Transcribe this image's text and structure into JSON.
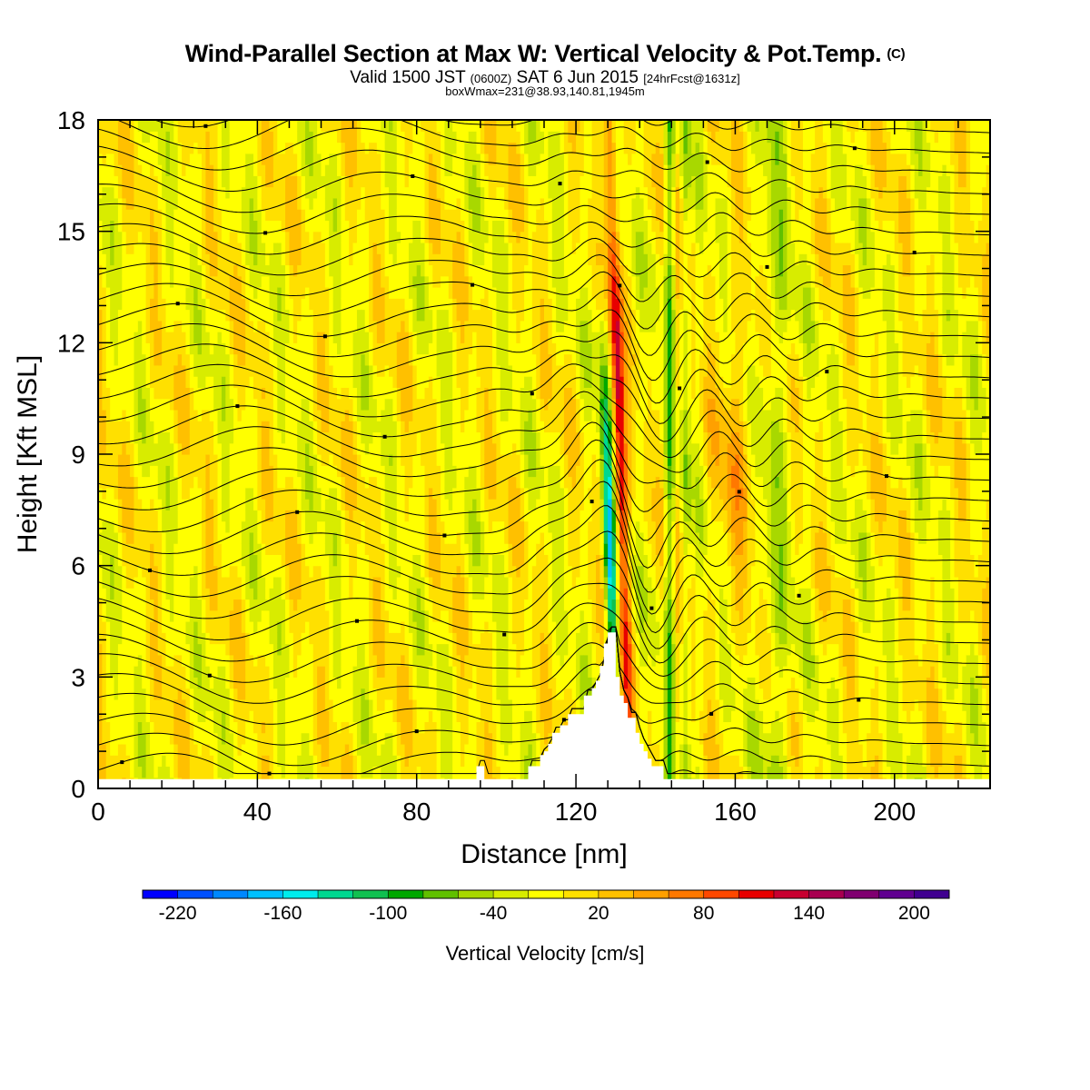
{
  "header": {
    "title": "Wind-Parallel Section at Max W: Vertical Velocity & Pot.Temp.",
    "copyright": "(C)",
    "valid_prefix": "Valid 1500 JST",
    "valid_zulu": "(0600Z)",
    "valid_date": "SAT 6 Jun 2015",
    "forecast": "[24hrFcst@1631z]",
    "box_info": "boxWmax=231@38.93,140.81,1945m"
  },
  "chart_data": {
    "type": "heatmap",
    "xlabel": "Distance [nm]",
    "ylabel": "Height [Kft MSL]",
    "xlim": [
      0,
      224
    ],
    "ylim": [
      0,
      18
    ],
    "x_ticks": [
      "0",
      "40",
      "80",
      "120",
      "160",
      "200"
    ],
    "y_ticks": [
      "0",
      "3",
      "6",
      "9",
      "12",
      "15",
      "18"
    ],
    "x_tick_values": [
      0,
      40,
      80,
      120,
      160,
      200
    ],
    "y_tick_values": [
      0,
      3,
      6,
      9,
      12,
      15,
      18
    ],
    "colorbar": {
      "title": "Vertical Velocity [cm/s]",
      "labels": [
        "-220",
        "-160",
        "-100",
        "-40",
        "20",
        "80",
        "140",
        "200"
      ],
      "label_values": [
        -220,
        -160,
        -100,
        -40,
        20,
        80,
        140,
        200
      ],
      "min": -240,
      "max": 220,
      "step": 20,
      "colors": [
        "#0000ff",
        "#0050ff",
        "#0088ff",
        "#00c0ff",
        "#00ecec",
        "#00d890",
        "#10c050",
        "#00a800",
        "#60c000",
        "#a8d800",
        "#d8ec00",
        "#ffff00",
        "#ffe000",
        "#ffc000",
        "#ffa000",
        "#ff7800",
        "#ff4800",
        "#e80000",
        "#c80030",
        "#a80050",
        "#800070",
        "#600090",
        "#400090"
      ]
    },
    "terrain": [
      [
        0,
        0.25
      ],
      [
        94,
        0.25
      ],
      [
        95,
        0.6
      ],
      [
        96,
        0.6
      ],
      [
        97,
        0.25
      ],
      [
        107,
        0.25
      ],
      [
        108,
        0.6
      ],
      [
        110,
        0.6
      ],
      [
        111,
        0.9
      ],
      [
        112,
        1.0
      ],
      [
        113,
        1.2
      ],
      [
        114,
        1.5
      ],
      [
        116,
        1.7
      ],
      [
        118,
        2.0
      ],
      [
        121,
        2.0
      ],
      [
        122,
        2.5
      ],
      [
        124,
        2.7
      ],
      [
        125,
        2.9
      ],
      [
        126,
        3.3
      ],
      [
        127,
        3.9
      ],
      [
        128,
        4.2
      ],
      [
        129,
        4.2
      ],
      [
        130,
        3.0
      ],
      [
        131,
        2.5
      ],
      [
        132,
        2.3
      ],
      [
        133,
        1.9
      ],
      [
        135,
        1.5
      ],
      [
        136,
        1.2
      ],
      [
        137,
        1.0
      ],
      [
        138,
        0.8
      ],
      [
        139,
        0.6
      ],
      [
        141,
        0.6
      ],
      [
        142,
        0.25
      ],
      [
        224,
        0.25
      ]
    ],
    "potential_temperature_contours": "black isentropes, descending in the lee of the peak near x=130 nm"
  }
}
